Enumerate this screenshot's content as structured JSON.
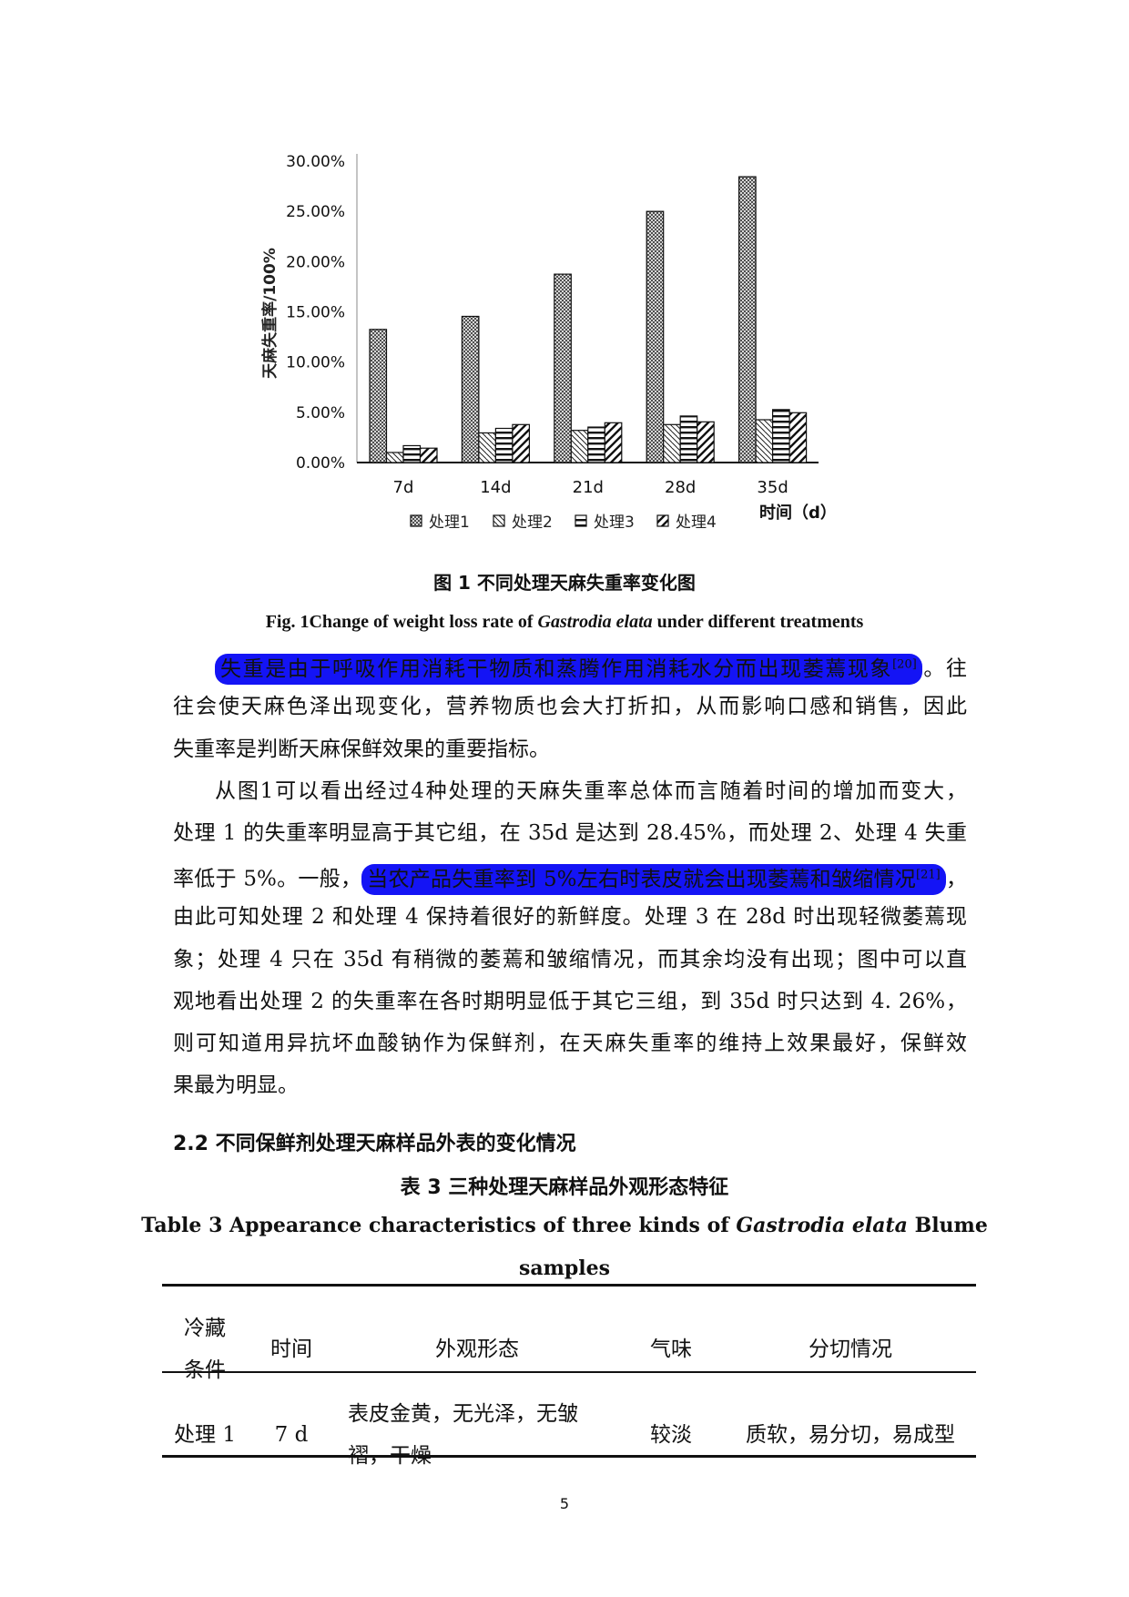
{
  "chart_data": {
    "type": "bar",
    "title": "",
    "xlabel": "时间（d）",
    "ylabel": "天麻失重率/100%",
    "categories": [
      "7d",
      "14d",
      "21d",
      "28d",
      "35d"
    ],
    "y_ticks": [
      "0.00%",
      "5.00%",
      "10.00%",
      "15.00%",
      "20.00%",
      "25.00%",
      "30.00%"
    ],
    "ylim": [
      0,
      30
    ],
    "grid": false,
    "legend_position": "bottom",
    "series": [
      {
        "name": "处理1",
        "pattern": "crosshatch",
        "values": [
          13.25,
          14.55,
          18.75,
          25.0,
          28.45
        ]
      },
      {
        "name": "处理2",
        "pattern": "diagonal-back",
        "values": [
          1.0,
          2.95,
          3.2,
          3.78,
          4.26
        ]
      },
      {
        "name": "处理3",
        "pattern": "horizontal",
        "values": [
          1.68,
          3.4,
          3.53,
          4.63,
          5.27
        ]
      },
      {
        "name": "处理4",
        "pattern": "diagonal-forward",
        "values": [
          1.43,
          3.78,
          3.96,
          4.05,
          4.96
        ]
      }
    ]
  },
  "figure": {
    "caption_cn": "图  1  不同处理天麻失重率变化图",
    "caption_en_pre": "Fig. 1Change of weight loss rate of ",
    "caption_en_italic": "Gastrodia elata",
    "caption_en_post": " under different treatments"
  },
  "highlight_color": "#1414f5",
  "body_lines": [
    {
      "indent": true,
      "parts": [
        {
          "text": "失重是由于呼吸作用消耗干物质和蒸腾作用消耗水分而出现萎蔫现象",
          "sup": "[20]",
          "hl": true
        },
        {
          "text": "。往"
        }
      ]
    },
    {
      "parts": [
        {
          "text": "往会使天麻色泽出现变化，营养物质也会大打折扣，从而影响口感和销售，因此"
        }
      ]
    },
    {
      "last": true,
      "parts": [
        {
          "text": "失重率是判断天麻保鲜效果的重要指标。"
        }
      ]
    },
    {
      "indent": true,
      "parts": [
        {
          "text": "从图1可以看出经过4种处理的天麻失重率总体而言随着时间的增加而变大，"
        }
      ]
    },
    {
      "parts": [
        {
          "text": "处理 1 的失重率明显高于其它组，在 35d 是达到 28.45%，而处理 2、处理 4 失重"
        }
      ]
    },
    {
      "parts": [
        {
          "text": "率低于 5%。一般，"
        },
        {
          "text": "当农产品失重率到 5%左右时表皮就会出现萎蔫和皱缩情况",
          "sup": "[21]",
          "hl": true
        },
        {
          "text": "，"
        }
      ]
    },
    {
      "parts": [
        {
          "text": "由此可知处理 2 和处理 4 保持着很好的新鲜度。处理 3 在 28d 时出现轻微萎蔫现"
        }
      ]
    },
    {
      "parts": [
        {
          "text": "象；处理 4 只在 35d 有稍微的萎蔫和皱缩情况，而其余均没有出现；图中可以直"
        }
      ]
    },
    {
      "parts": [
        {
          "text": "观地看出处理 2 的失重率在各时期明显低于其它三组，到 35d 时只达到 4. 26%，"
        }
      ]
    },
    {
      "parts": [
        {
          "text": "则可知道用异抗坏血酸钠作为保鲜剂，在天麻失重率的维持上效果最好，保鲜效"
        }
      ]
    },
    {
      "last": true,
      "parts": [
        {
          "text": "果最为明显。"
        }
      ]
    }
  ],
  "section_heading": "2.2 不同保鲜剂处理天麻样品外表的变化情况",
  "table": {
    "caption_cn": "表 3  三种处理天麻样品外观形态特征",
    "caption_en_pre": "Table 3 Appearance characteristics of three kinds of ",
    "caption_en_italic": "Gastrodia elata",
    "caption_en_post": " Blume",
    "caption_en_line2": "samples",
    "headers": [
      "冷藏\n条件",
      "时间",
      "外观形态",
      "气味",
      "分切情况"
    ],
    "rows": [
      [
        "处理 1",
        "7 d",
        "表皮金黄，无光泽，无皱\n褶，干燥",
        "较淡",
        "质软，易分切，易成型"
      ]
    ]
  },
  "page_number": "5"
}
